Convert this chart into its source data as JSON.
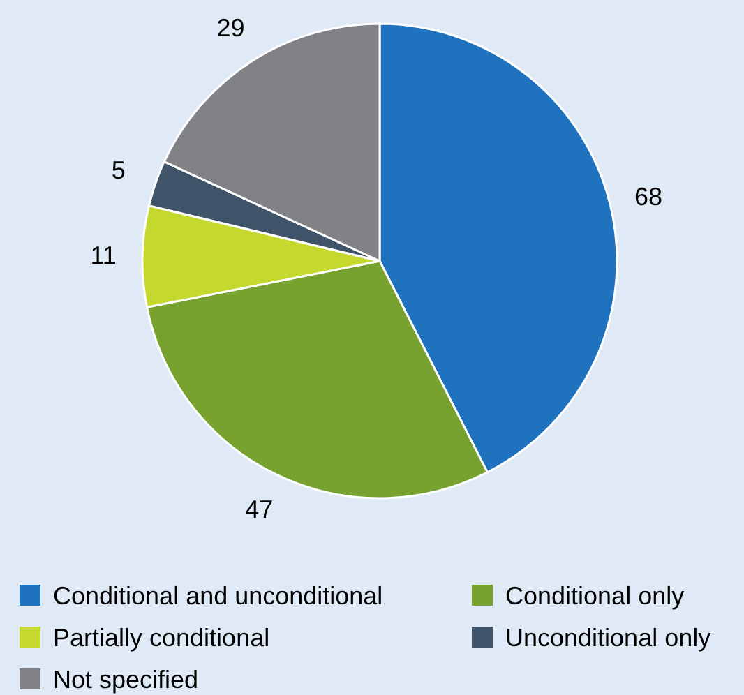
{
  "chart_data": {
    "type": "pie",
    "categories": [
      "Conditional and unconditional",
      "Conditional only",
      "Partially conditional",
      "Unconditional only",
      "Not specified"
    ],
    "values": [
      68,
      47,
      11,
      5,
      29
    ],
    "colors": [
      "#1f72be",
      "#77a22f",
      "#c5d82e",
      "#3f5468",
      "#818286"
    ],
    "data_labels": true,
    "legend": "bottom"
  }
}
